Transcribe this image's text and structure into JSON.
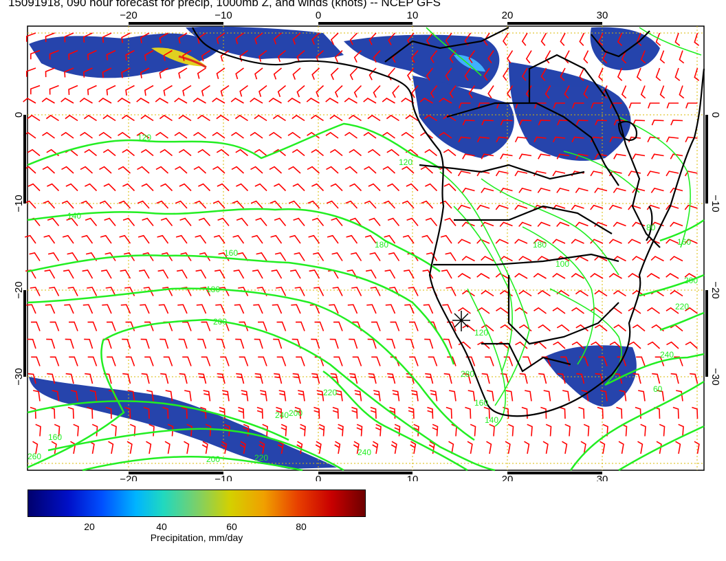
{
  "title": "15091918, 090 hour forecast for precip, 1000mb Z, and winds (knots) -- NCEP GFS",
  "map": {
    "lon_ticks": [
      "−20",
      "−10",
      "0",
      "10",
      "20",
      "30"
    ],
    "lat_ticks": [
      "0",
      "−10",
      "−20",
      "−30"
    ],
    "contour_labels": [
      "120",
      "140",
      "160",
      "180",
      "200",
      "120",
      "180",
      "160",
      "200",
      "220",
      "240",
      "200",
      "220",
      "240",
      "260",
      "280",
      "160",
      "140",
      "120",
      "180",
      "100",
      "80",
      "60",
      "200",
      "220",
      "240",
      "160"
    ],
    "colors": {
      "wind_barbs": "#ff0000",
      "contours": "#22ee22",
      "coastlines": "#000000",
      "grid": "#d8b800",
      "precip": "#1a3aa8"
    }
  },
  "colorbar": {
    "title": "Precipitation, mm/day",
    "tick_labels": [
      "20",
      "40",
      "60",
      "80"
    ],
    "min": 0,
    "max": 98
  }
}
